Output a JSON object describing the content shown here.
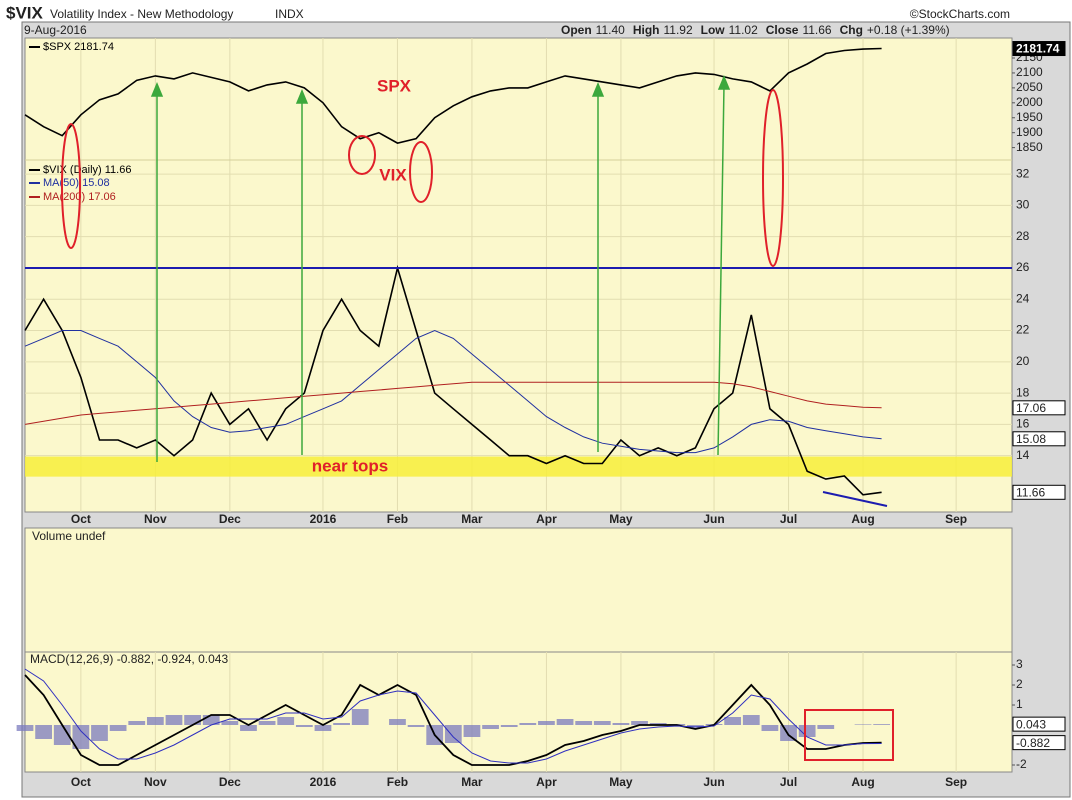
{
  "header": {
    "symbol": "$VIX",
    "name": "Volatility Index - New Methodology",
    "exchange": "INDX",
    "source": "©StockCharts.com",
    "date": "9-Aug-2016",
    "quote": [
      {
        "label": "Open",
        "value": "11.40"
      },
      {
        "label": "High",
        "value": "11.92"
      },
      {
        "label": "Low",
        "value": "11.02"
      },
      {
        "label": "Close",
        "value": "11.66"
      },
      {
        "label": "Chg",
        "value": "+0.18 (+1.39%)"
      }
    ]
  },
  "chart_data": [
    {
      "type": "line",
      "categories": [
        null,
        null,
        null,
        "Oct",
        null,
        null,
        null,
        "Nov",
        null,
        null,
        null,
        "Dec",
        null,
        null,
        null,
        null,
        "2016",
        null,
        null,
        null,
        "Feb",
        null,
        null,
        null,
        "Mar",
        null,
        null,
        null,
        "Apr",
        null,
        null,
        null,
        "May",
        null,
        null,
        null,
        null,
        "Jun",
        null,
        null,
        null,
        "Jul",
        null,
        null,
        null,
        "Aug",
        null,
        null,
        null,
        null,
        "Sep",
        null,
        null,
        null
      ],
      "ylim": [
        10.4,
        40.7
      ],
      "yticks": [
        14,
        16,
        18,
        20,
        22,
        24,
        26,
        28,
        30,
        32
      ],
      "y2lim": [
        630,
        2217
      ],
      "y2ticks": [
        2150,
        2100,
        2050,
        2000,
        1950,
        1900,
        1850
      ],
      "grid": true,
      "hline": {
        "value": 26,
        "color": "#1c1cb0"
      },
      "band": {
        "values": [
          12.66,
          13.94
        ],
        "color": "#f7ef3a"
      },
      "annotations": [
        {
          "text": "SPX",
          "color": "#e0202a"
        },
        {
          "text": "VIX",
          "color": "#e0202a"
        },
        {
          "text": "near tops",
          "color": "#e0202a"
        }
      ],
      "series": [
        {
          "name": "$SPX 2181.74",
          "color": "#000000",
          "axis": "y2",
          "values": [
            1960,
            1920,
            1890,
            1960,
            2010,
            2030,
            2075,
            2090,
            2080,
            2100,
            2085,
            2070,
            2040,
            2060,
            2070,
            2050,
            2000,
            1920,
            1880,
            1900,
            1865,
            1880,
            1950,
            1990,
            2020,
            2040,
            2050,
            2050,
            2070,
            2090,
            2080,
            2070,
            2060,
            2050,
            2070,
            2090,
            2100,
            2095,
            2080,
            2070,
            2040,
            2100,
            2130,
            2165,
            2175,
            2180,
            2181.74,
            null,
            null,
            null,
            null,
            null,
            null,
            null
          ]
        },
        {
          "name": "$VIX (Daily) 11.66",
          "color": "#000000",
          "values": [
            22,
            24,
            22,
            19,
            15,
            15,
            14.5,
            15,
            14,
            15,
            18,
            16,
            17,
            15,
            17,
            18,
            22,
            24,
            22,
            21,
            26,
            22,
            18,
            17,
            16,
            15,
            14,
            14,
            13.5,
            14,
            13.5,
            13.5,
            15,
            14,
            14.5,
            14,
            14.5,
            17,
            18,
            23,
            17,
            16,
            13,
            12.5,
            12.7,
            11.5,
            11.66,
            null,
            null,
            null,
            null,
            null,
            null,
            null
          ]
        },
        {
          "name": "MA(50) 15.08",
          "color": "#2030a0",
          "values": [
            21,
            21.5,
            22,
            22,
            21.5,
            21,
            20,
            19,
            17.5,
            16.5,
            15.8,
            15.5,
            15.6,
            15.8,
            16,
            16.5,
            17,
            17.5,
            18.5,
            19.5,
            20.5,
            21.5,
            22,
            21.5,
            20.5,
            19.5,
            18.5,
            17.5,
            16.5,
            15.8,
            15.2,
            14.8,
            14.6,
            14.4,
            14.3,
            14.2,
            14.2,
            14.5,
            15.2,
            16,
            16.3,
            16.2,
            15.8,
            15.6,
            15.4,
            15.2,
            15.08,
            null,
            null,
            null,
            null,
            null,
            null,
            null
          ]
        },
        {
          "name": "MA(200) 17.06",
          "color": "#b02020",
          "values": [
            16,
            16.2,
            16.4,
            16.6,
            16.7,
            16.8,
            16.9,
            17,
            17.1,
            17.2,
            17.3,
            17.4,
            17.5,
            17.6,
            17.7,
            17.8,
            17.9,
            18,
            18.1,
            18.2,
            18.3,
            18.4,
            18.5,
            18.6,
            18.7,
            18.7,
            18.7,
            18.7,
            18.7,
            18.7,
            18.7,
            18.7,
            18.7,
            18.7,
            18.7,
            18.7,
            18.7,
            18.7,
            18.6,
            18.4,
            18.1,
            17.8,
            17.5,
            17.3,
            17.2,
            17.1,
            17.06,
            null,
            null,
            null,
            null,
            null,
            null,
            null
          ]
        }
      ]
    },
    {
      "type": "volume",
      "title": "Volume undef"
    },
    {
      "type": "macd",
      "title": "MACD(12,26,9) -0.882, -0.924, 0.043",
      "categories": [
        null,
        null,
        null,
        "Oct",
        null,
        null,
        null,
        "Nov",
        null,
        null,
        null,
        "Dec",
        null,
        null,
        null,
        null,
        "2016",
        null,
        null,
        null,
        "Feb",
        null,
        null,
        null,
        "Mar",
        null,
        null,
        null,
        "Apr",
        null,
        null,
        null,
        "May",
        null,
        null,
        null,
        null,
        "Jun",
        null,
        null,
        null,
        "Jul",
        null,
        null,
        null,
        "Aug",
        null,
        null,
        null,
        null,
        "Sep",
        null,
        null,
        null
      ],
      "ylim": [
        -2.35,
        3.65
      ],
      "yticks": [
        3,
        2,
        1,
        -2
      ],
      "series": [
        {
          "style": "histogram",
          "color": "#7b7bbf",
          "values": [
            -0.3,
            -0.7,
            -1,
            -1.2,
            -0.8,
            -0.3,
            0.2,
            0.4,
            0.5,
            0.5,
            0.5,
            0.2,
            -0.3,
            0.2,
            0.4,
            -0.1,
            -0.3,
            0.1,
            0.8,
            0,
            0.3,
            -0.1,
            -1,
            -0.9,
            -0.6,
            -0.2,
            -0.1,
            0.1,
            0.2,
            0.3,
            0.2,
            0.2,
            0.1,
            0.2,
            0.1,
            0.05,
            -0.1,
            0.05,
            0.4,
            0.5,
            -0.3,
            -0.8,
            -0.6,
            -0.2,
            0,
            0.03,
            0.043,
            null,
            null,
            null,
            null,
            null,
            null,
            null
          ]
        },
        {
          "style": "line",
          "color": "#000000",
          "values": [
            2.5,
            1.5,
            0,
            -1.5,
            -2,
            -2,
            -1.5,
            -1,
            -0.5,
            0,
            0.5,
            0.5,
            0,
            0.5,
            1,
            0.5,
            0,
            0.5,
            2,
            1.5,
            2,
            1.5,
            -0.5,
            -1.5,
            -2,
            -2,
            -2,
            -1.8,
            -1.5,
            -1,
            -0.8,
            -0.5,
            -0.3,
            0,
            0,
            0,
            -0.2,
            0,
            1,
            2,
            1,
            -0.5,
            -1.2,
            -1.2,
            -1,
            -0.9,
            -0.882,
            null,
            null,
            null,
            null,
            null,
            null,
            null
          ]
        },
        {
          "style": "line",
          "color": "#3030c0",
          "values": [
            2.8,
            2.2,
            1,
            -0.3,
            -1.2,
            -1.7,
            -1.7,
            -1.4,
            -1,
            -0.5,
            0,
            0.3,
            0.3,
            0.3,
            0.6,
            0.6,
            0.3,
            0.4,
            1.2,
            1.5,
            1.7,
            1.6,
            0.5,
            -0.6,
            -1.4,
            -1.8,
            -1.9,
            -1.9,
            -1.7,
            -1.3,
            -1,
            -0.7,
            -0.4,
            -0.2,
            -0.1,
            -0.05,
            -0.1,
            -0.05,
            0.6,
            1.5,
            1.3,
            0.3,
            -0.6,
            -1,
            -1,
            -0.93,
            -0.924,
            null,
            null,
            null,
            null,
            null,
            null,
            null
          ]
        }
      ]
    }
  ]
}
